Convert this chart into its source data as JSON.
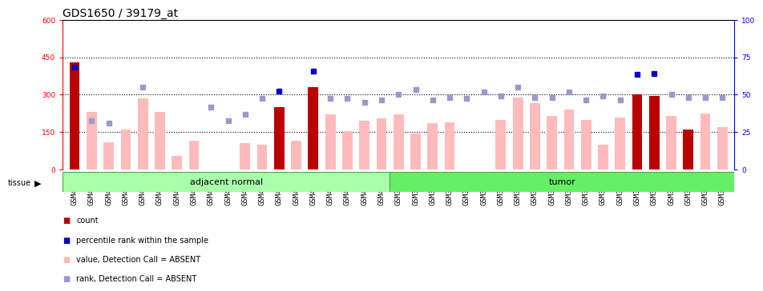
{
  "title": "GDS1650 / 39179_at",
  "samples": [
    "GSM47958",
    "GSM47959",
    "GSM47960",
    "GSM47961",
    "GSM47962",
    "GSM47963",
    "GSM47964",
    "GSM47965",
    "GSM47966",
    "GSM47967",
    "GSM47968",
    "GSM47969",
    "GSM47970",
    "GSM47971",
    "GSM47972",
    "GSM47973",
    "GSM47974",
    "GSM47975",
    "GSM47976",
    "GSM36757",
    "GSM36758",
    "GSM36759",
    "GSM36760",
    "GSM36761",
    "GSM36762",
    "GSM36763",
    "GSM36764",
    "GSM36765",
    "GSM36766",
    "GSM36767",
    "GSM36768",
    "GSM36769",
    "GSM36770",
    "GSM36771",
    "GSM36772",
    "GSM36773",
    "GSM36774",
    "GSM36775",
    "GSM36776"
  ],
  "bar_values": [
    430,
    0,
    0,
    0,
    0,
    0,
    0,
    0,
    0,
    0,
    0,
    0,
    250,
    0,
    330,
    0,
    0,
    0,
    0,
    0,
    0,
    0,
    0,
    0,
    0,
    0,
    0,
    0,
    0,
    0,
    0,
    0,
    0,
    300,
    295,
    0,
    160,
    0,
    0
  ],
  "bar_is_dark": [
    true,
    false,
    false,
    false,
    false,
    false,
    false,
    false,
    false,
    false,
    false,
    false,
    true,
    false,
    true,
    false,
    false,
    false,
    false,
    false,
    false,
    false,
    false,
    false,
    false,
    false,
    false,
    false,
    false,
    false,
    false,
    false,
    false,
    true,
    true,
    false,
    true,
    false,
    false
  ],
  "pink_values": [
    0,
    230,
    110,
    160,
    285,
    230,
    55,
    115,
    0,
    0,
    105,
    100,
    0,
    115,
    0,
    220,
    155,
    195,
    205,
    220,
    145,
    185,
    190,
    0,
    0,
    200,
    290,
    265,
    215,
    240,
    200,
    100,
    210,
    0,
    0,
    215,
    0,
    225,
    170
  ],
  "blue_rank_values": [
    0,
    195,
    185,
    0,
    330,
    0,
    0,
    0,
    250,
    195,
    220,
    285,
    0,
    0,
    0,
    285,
    285,
    270,
    280,
    300,
    320,
    280,
    290,
    285,
    310,
    295,
    330,
    290,
    290,
    310,
    280,
    295,
    280,
    0,
    0,
    300,
    290,
    290,
    290
  ],
  "blue_dark_values": [
    410,
    0,
    0,
    0,
    0,
    0,
    0,
    0,
    0,
    0,
    0,
    0,
    315,
    0,
    395,
    0,
    0,
    0,
    0,
    0,
    0,
    0,
    0,
    0,
    0,
    0,
    0,
    0,
    0,
    0,
    0,
    0,
    0,
    380,
    385,
    0,
    0,
    0,
    0
  ],
  "group_adj_count": 19,
  "group_tumor_count": 20,
  "group_adj_color": "#aaffaa",
  "group_tumor_color": "#66ee66",
  "left_yticks": [
    0,
    150,
    300,
    450,
    600
  ],
  "right_yticks": [
    0,
    25,
    50,
    75,
    100
  ],
  "ylim_left": [
    0,
    600
  ],
  "ylim_right": [
    0,
    100
  ],
  "bar_color_dark": "#bb0000",
  "bar_color_light": "#ffbbbb",
  "blue_dark_color": "#0000cc",
  "blue_light_color": "#9999cc",
  "background_color": "#ffffff",
  "title_fontsize": 10,
  "tick_fontsize": 6.5,
  "label_fontsize": 8
}
